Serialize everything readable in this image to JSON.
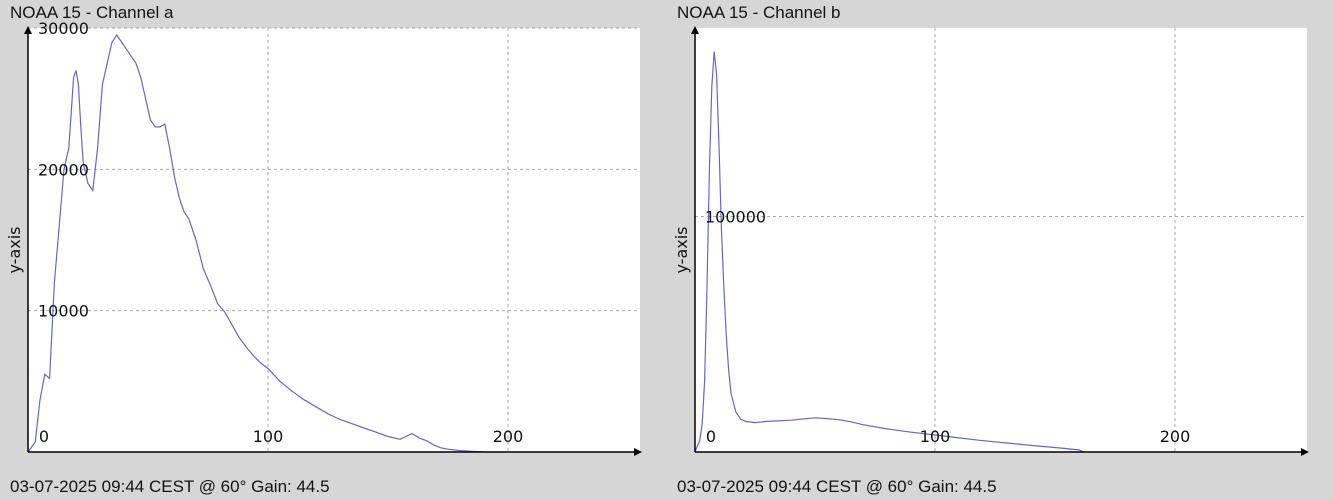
{
  "charts": [
    {
      "title": "NOAA 15 - Channel a",
      "footer": "03-07-2025 09:44 CEST @ 60° Gain: 44.5"
    },
    {
      "title": "NOAA 15 - Channel b",
      "footer": "03-07-2025 09:44 CEST @ 60° Gain: 44.5"
    }
  ],
  "colors": {
    "background": "#d6d6d6",
    "plot_bg": "#ffffff",
    "line": "#6666cc",
    "grid": "#aaaaaa"
  },
  "chart_data": [
    {
      "type": "line",
      "title": "NOAA 15 - Channel a",
      "xlabel": "",
      "ylabel": "y-axis",
      "xlim": [
        0,
        255
      ],
      "ylim": [
        0,
        30000
      ],
      "x_ticks": [
        0,
        100,
        200
      ],
      "y_ticks": [
        10000,
        20000,
        30000
      ],
      "grid": true,
      "x": [
        0,
        3,
        5,
        7,
        9,
        11,
        13,
        15,
        17,
        19,
        20,
        21,
        22,
        23,
        25,
        27,
        29,
        31,
        33,
        35,
        37,
        39,
        41,
        43,
        45,
        47,
        49,
        51,
        53,
        55,
        57,
        59,
        61,
        63,
        65,
        67,
        70,
        73,
        76,
        79,
        82,
        85,
        88,
        91,
        94,
        97,
        100,
        105,
        110,
        115,
        120,
        125,
        130,
        135,
        140,
        145,
        150,
        155,
        160,
        163,
        166,
        169,
        172,
        175,
        180,
        185,
        190
      ],
      "y": [
        0,
        700,
        3700,
        5500,
        5200,
        12000,
        16000,
        20000,
        21500,
        26500,
        27000,
        26000,
        23000,
        20500,
        19000,
        18500,
        21500,
        26000,
        27500,
        29000,
        29500,
        29000,
        28500,
        28000,
        27500,
        26500,
        25000,
        23500,
        23000,
        23000,
        23200,
        21500,
        19500,
        18000,
        17000,
        16500,
        15000,
        13000,
        11800,
        10500,
        9900,
        9000,
        8100,
        7400,
        6800,
        6300,
        5900,
        5000,
        4300,
        3700,
        3200,
        2700,
        2300,
        2000,
        1700,
        1400,
        1100,
        900,
        1300,
        1000,
        800,
        500,
        300,
        200,
        100,
        50,
        0
      ]
    },
    {
      "type": "line",
      "title": "NOAA 15 - Channel b",
      "xlabel": "",
      "ylabel": "y-axis",
      "xlim": [
        0,
        255
      ],
      "ylim": [
        0,
        180000
      ],
      "x_ticks": [
        0,
        100,
        200
      ],
      "y_ticks": [
        100000
      ],
      "grid": true,
      "x": [
        0,
        2,
        3,
        4,
        5,
        6,
        7,
        8,
        9,
        10,
        11,
        12,
        13,
        14,
        15,
        17,
        19,
        21,
        25,
        30,
        40,
        50,
        55,
        60,
        65,
        70,
        80,
        90,
        100,
        110,
        120,
        130,
        140,
        150,
        160,
        162
      ],
      "y": [
        0,
        5000,
        12000,
        30000,
        70000,
        120000,
        155000,
        170000,
        160000,
        130000,
        95000,
        70000,
        50000,
        35000,
        25000,
        17000,
        14000,
        13000,
        12500,
        13000,
        13500,
        14500,
        14200,
        13700,
        12800,
        11600,
        9800,
        8400,
        7200,
        6000,
        4800,
        3800,
        2800,
        1900,
        900,
        0
      ]
    }
  ]
}
